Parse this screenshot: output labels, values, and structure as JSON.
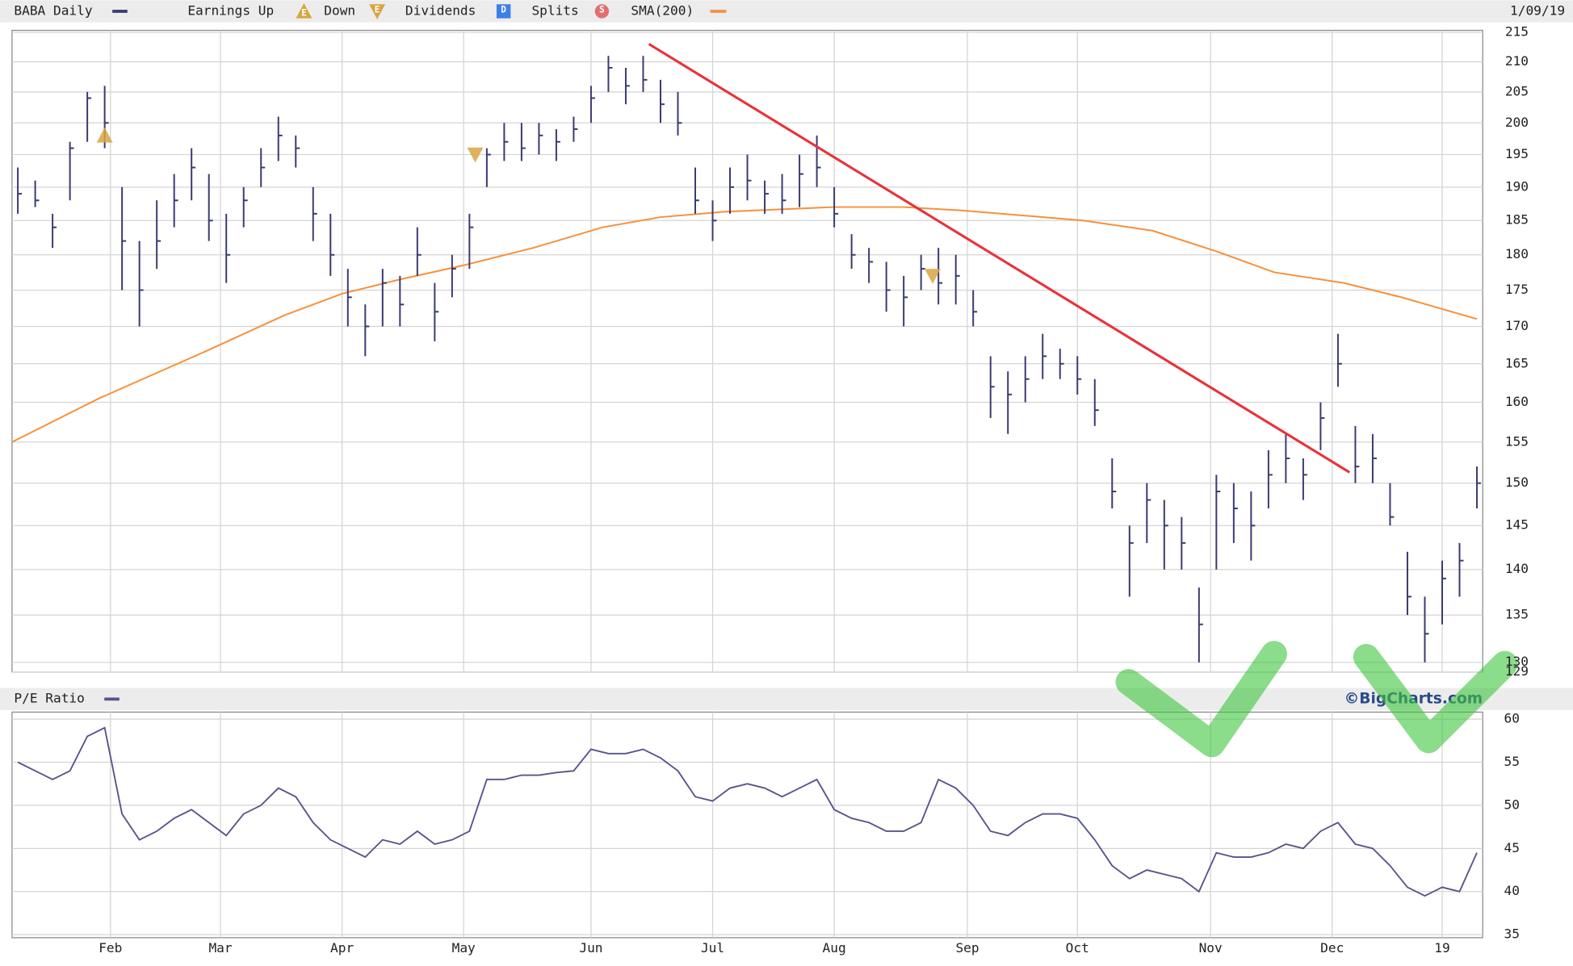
{
  "chart_data": [
    {
      "type": "ohlc",
      "title": "BABA Daily",
      "date": "1/09/19",
      "watermark": "©BigCharts.com",
      "log_scale": true,
      "grid": true,
      "xlim": [
        0,
        254
      ],
      "ylim": [
        129,
        215
      ],
      "yticks": [
        129,
        130,
        135,
        140,
        145,
        150,
        155,
        160,
        165,
        170,
        175,
        180,
        185,
        190,
        195,
        200,
        205,
        210,
        215
      ],
      "legend_extra": [
        {
          "name": "Earnings Up",
          "icon": "E",
          "color": "#d9a441",
          "shape": "up"
        },
        {
          "name": "Down",
          "icon": "E",
          "color": "#d9a441",
          "shape": "down"
        },
        {
          "name": "Dividends",
          "icon": "D",
          "color": "#3d7fe6",
          "shape": "square"
        },
        {
          "name": "Splits",
          "icon": "S",
          "color": "#e07070",
          "shape": "circle"
        }
      ],
      "x": [
        1,
        4,
        7,
        10,
        13,
        16,
        19,
        22,
        25,
        28,
        31,
        34,
        37,
        40,
        43,
        46,
        49,
        52,
        55,
        58,
        61,
        64,
        67,
        70,
        73,
        76,
        79,
        82,
        85,
        88,
        91,
        94,
        97,
        100,
        103,
        106,
        109,
        112,
        115,
        118,
        121,
        124,
        127,
        130,
        133,
        136,
        139,
        142,
        145,
        148,
        151,
        154,
        157,
        160,
        163,
        166,
        169,
        172,
        175,
        178,
        181,
        184,
        187,
        190,
        193,
        196,
        199,
        202,
        205,
        208,
        211,
        214,
        217,
        220,
        223,
        226,
        229,
        232,
        235,
        238,
        241,
        244,
        247,
        250,
        253
      ],
      "series": [
        {
          "name": "BABA Daily",
          "color": "#3a3a72",
          "high": [
            193,
            191,
            186,
            197,
            205,
            206,
            190,
            182,
            188,
            192,
            196,
            192,
            186,
            190,
            196,
            201,
            198,
            190,
            186,
            178,
            173,
            178,
            177,
            184,
            176,
            180,
            186,
            196,
            200,
            200,
            200,
            199,
            201,
            206,
            211,
            209,
            211,
            207,
            205,
            193,
            188,
            193,
            195,
            191,
            192,
            195,
            198,
            190,
            183,
            181,
            179,
            177,
            180,
            181,
            180,
            175,
            166,
            164,
            166,
            169,
            167,
            166,
            163,
            153,
            145,
            150,
            148,
            146,
            138,
            151,
            150,
            149,
            154,
            156,
            153,
            160,
            169,
            157,
            156,
            150,
            142,
            137,
            141,
            143,
            152
          ],
          "low": [
            186,
            187,
            181,
            188,
            197,
            196,
            175,
            170,
            178,
            184,
            188,
            182,
            176,
            184,
            190,
            194,
            193,
            182,
            177,
            170,
            166,
            170,
            170,
            177,
            168,
            174,
            178,
            190,
            194,
            194,
            195,
            194,
            197,
            200,
            205,
            203,
            205,
            200,
            198,
            186,
            182,
            186,
            188,
            186,
            186,
            187,
            190,
            184,
            178,
            176,
            172,
            170,
            175,
            173,
            173,
            170,
            158,
            156,
            160,
            163,
            163,
            161,
            157,
            147,
            137,
            143,
            140,
            140,
            130,
            140,
            143,
            141,
            147,
            150,
            148,
            154,
            162,
            150,
            150,
            145,
            135,
            130,
            134,
            137,
            147
          ],
          "close": [
            189,
            188,
            184,
            196,
            204,
            200,
            182,
            175,
            182,
            188,
            193,
            185,
            180,
            188,
            193,
            198,
            196,
            186,
            180,
            174,
            170,
            176,
            173,
            180,
            172,
            178,
            184,
            195,
            197,
            196,
            198,
            197,
            199,
            204,
            209,
            206,
            207,
            203,
            200,
            188,
            185,
            190,
            191,
            189,
            188,
            192,
            193,
            186,
            180,
            179,
            175,
            174,
            178,
            176,
            177,
            172,
            162,
            161,
            163,
            166,
            165,
            163,
            159,
            149,
            143,
            148,
            145,
            143,
            134,
            149,
            147,
            145,
            151,
            153,
            151,
            158,
            165,
            152,
            153,
            146,
            137,
            133,
            139,
            141,
            150
          ]
        },
        {
          "name": "SMA(200)",
          "color": "#f7903a",
          "x": [
            0,
            15,
            33,
            47,
            57,
            67,
            78,
            90,
            102,
            112,
            123,
            142,
            154,
            164,
            185,
            197,
            208,
            218,
            230,
            240,
            253
          ],
          "values": [
            155,
            160.5,
            166.5,
            171.5,
            174.5,
            176.5,
            178.5,
            181,
            184,
            185.5,
            186.3,
            187,
            187,
            186.5,
            185,
            183.5,
            180.5,
            177.5,
            176,
            174,
            171
          ]
        }
      ],
      "earnings": [
        {
          "x": 16,
          "value": 198,
          "shape": "up"
        },
        {
          "x": 80,
          "value": 195,
          "shape": "down"
        },
        {
          "x": 159,
          "value": 177,
          "shape": "down"
        }
      ],
      "trendline": {
        "x": [
          110,
          231
        ],
        "y": [
          213,
          151.3
        ],
        "color": "#e8323c"
      }
    },
    {
      "type": "line",
      "title": "P/E Ratio",
      "color": "#55558a",
      "xlim": [
        0,
        254
      ],
      "ylim": [
        35,
        60
      ],
      "yticks": [
        35,
        40,
        45,
        50,
        55,
        60
      ],
      "grid": true,
      "xticks": [
        {
          "value": 17,
          "label": "Feb"
        },
        {
          "value": 36,
          "label": "Mar"
        },
        {
          "value": 57,
          "label": "Apr"
        },
        {
          "value": 78,
          "label": "May"
        },
        {
          "value": 100,
          "label": "Jun"
        },
        {
          "value": 121,
          "label": "Jul"
        },
        {
          "value": 142,
          "label": "Aug"
        },
        {
          "value": 165,
          "label": "Sep"
        },
        {
          "value": 184,
          "label": "Oct"
        },
        {
          "value": 207,
          "label": "Nov"
        },
        {
          "value": 228,
          "label": "Dec"
        },
        {
          "value": 247,
          "label": "19"
        }
      ],
      "x": [
        1,
        4,
        7,
        10,
        13,
        16,
        19,
        22,
        25,
        28,
        31,
        34,
        37,
        40,
        43,
        46,
        49,
        52,
        55,
        58,
        61,
        64,
        67,
        70,
        73,
        76,
        79,
        82,
        85,
        88,
        91,
        94,
        97,
        100,
        103,
        106,
        109,
        112,
        115,
        118,
        121,
        124,
        127,
        130,
        133,
        136,
        139,
        142,
        145,
        148,
        151,
        154,
        157,
        160,
        163,
        166,
        169,
        172,
        175,
        178,
        181,
        184,
        187,
        190,
        193,
        196,
        199,
        202,
        205,
        208,
        211,
        214,
        217,
        220,
        223,
        226,
        229,
        232,
        235,
        238,
        241,
        244,
        247,
        250,
        253
      ],
      "values": [
        55,
        54,
        53,
        54,
        58,
        59,
        49,
        46,
        47,
        48.5,
        49.5,
        48,
        46.5,
        49,
        50,
        52,
        51,
        48,
        46,
        45,
        44,
        46,
        45.5,
        47,
        45.5,
        46,
        47,
        53,
        53,
        53.5,
        53.5,
        53.8,
        54,
        56.5,
        56,
        56,
        56.5,
        55.5,
        54,
        51,
        50.5,
        52,
        52.5,
        52,
        51,
        52,
        53,
        49.5,
        48.5,
        48,
        47,
        47,
        48,
        53,
        52,
        50,
        47,
        46.5,
        48,
        49,
        49,
        48.5,
        46,
        43,
        41.5,
        42.5,
        42,
        41.5,
        40,
        44.5,
        44,
        44,
        44.5,
        45.5,
        45,
        47,
        48,
        45.5,
        45,
        43,
        40.5,
        39.5,
        40.5,
        40,
        44.5
      ]
    }
  ]
}
